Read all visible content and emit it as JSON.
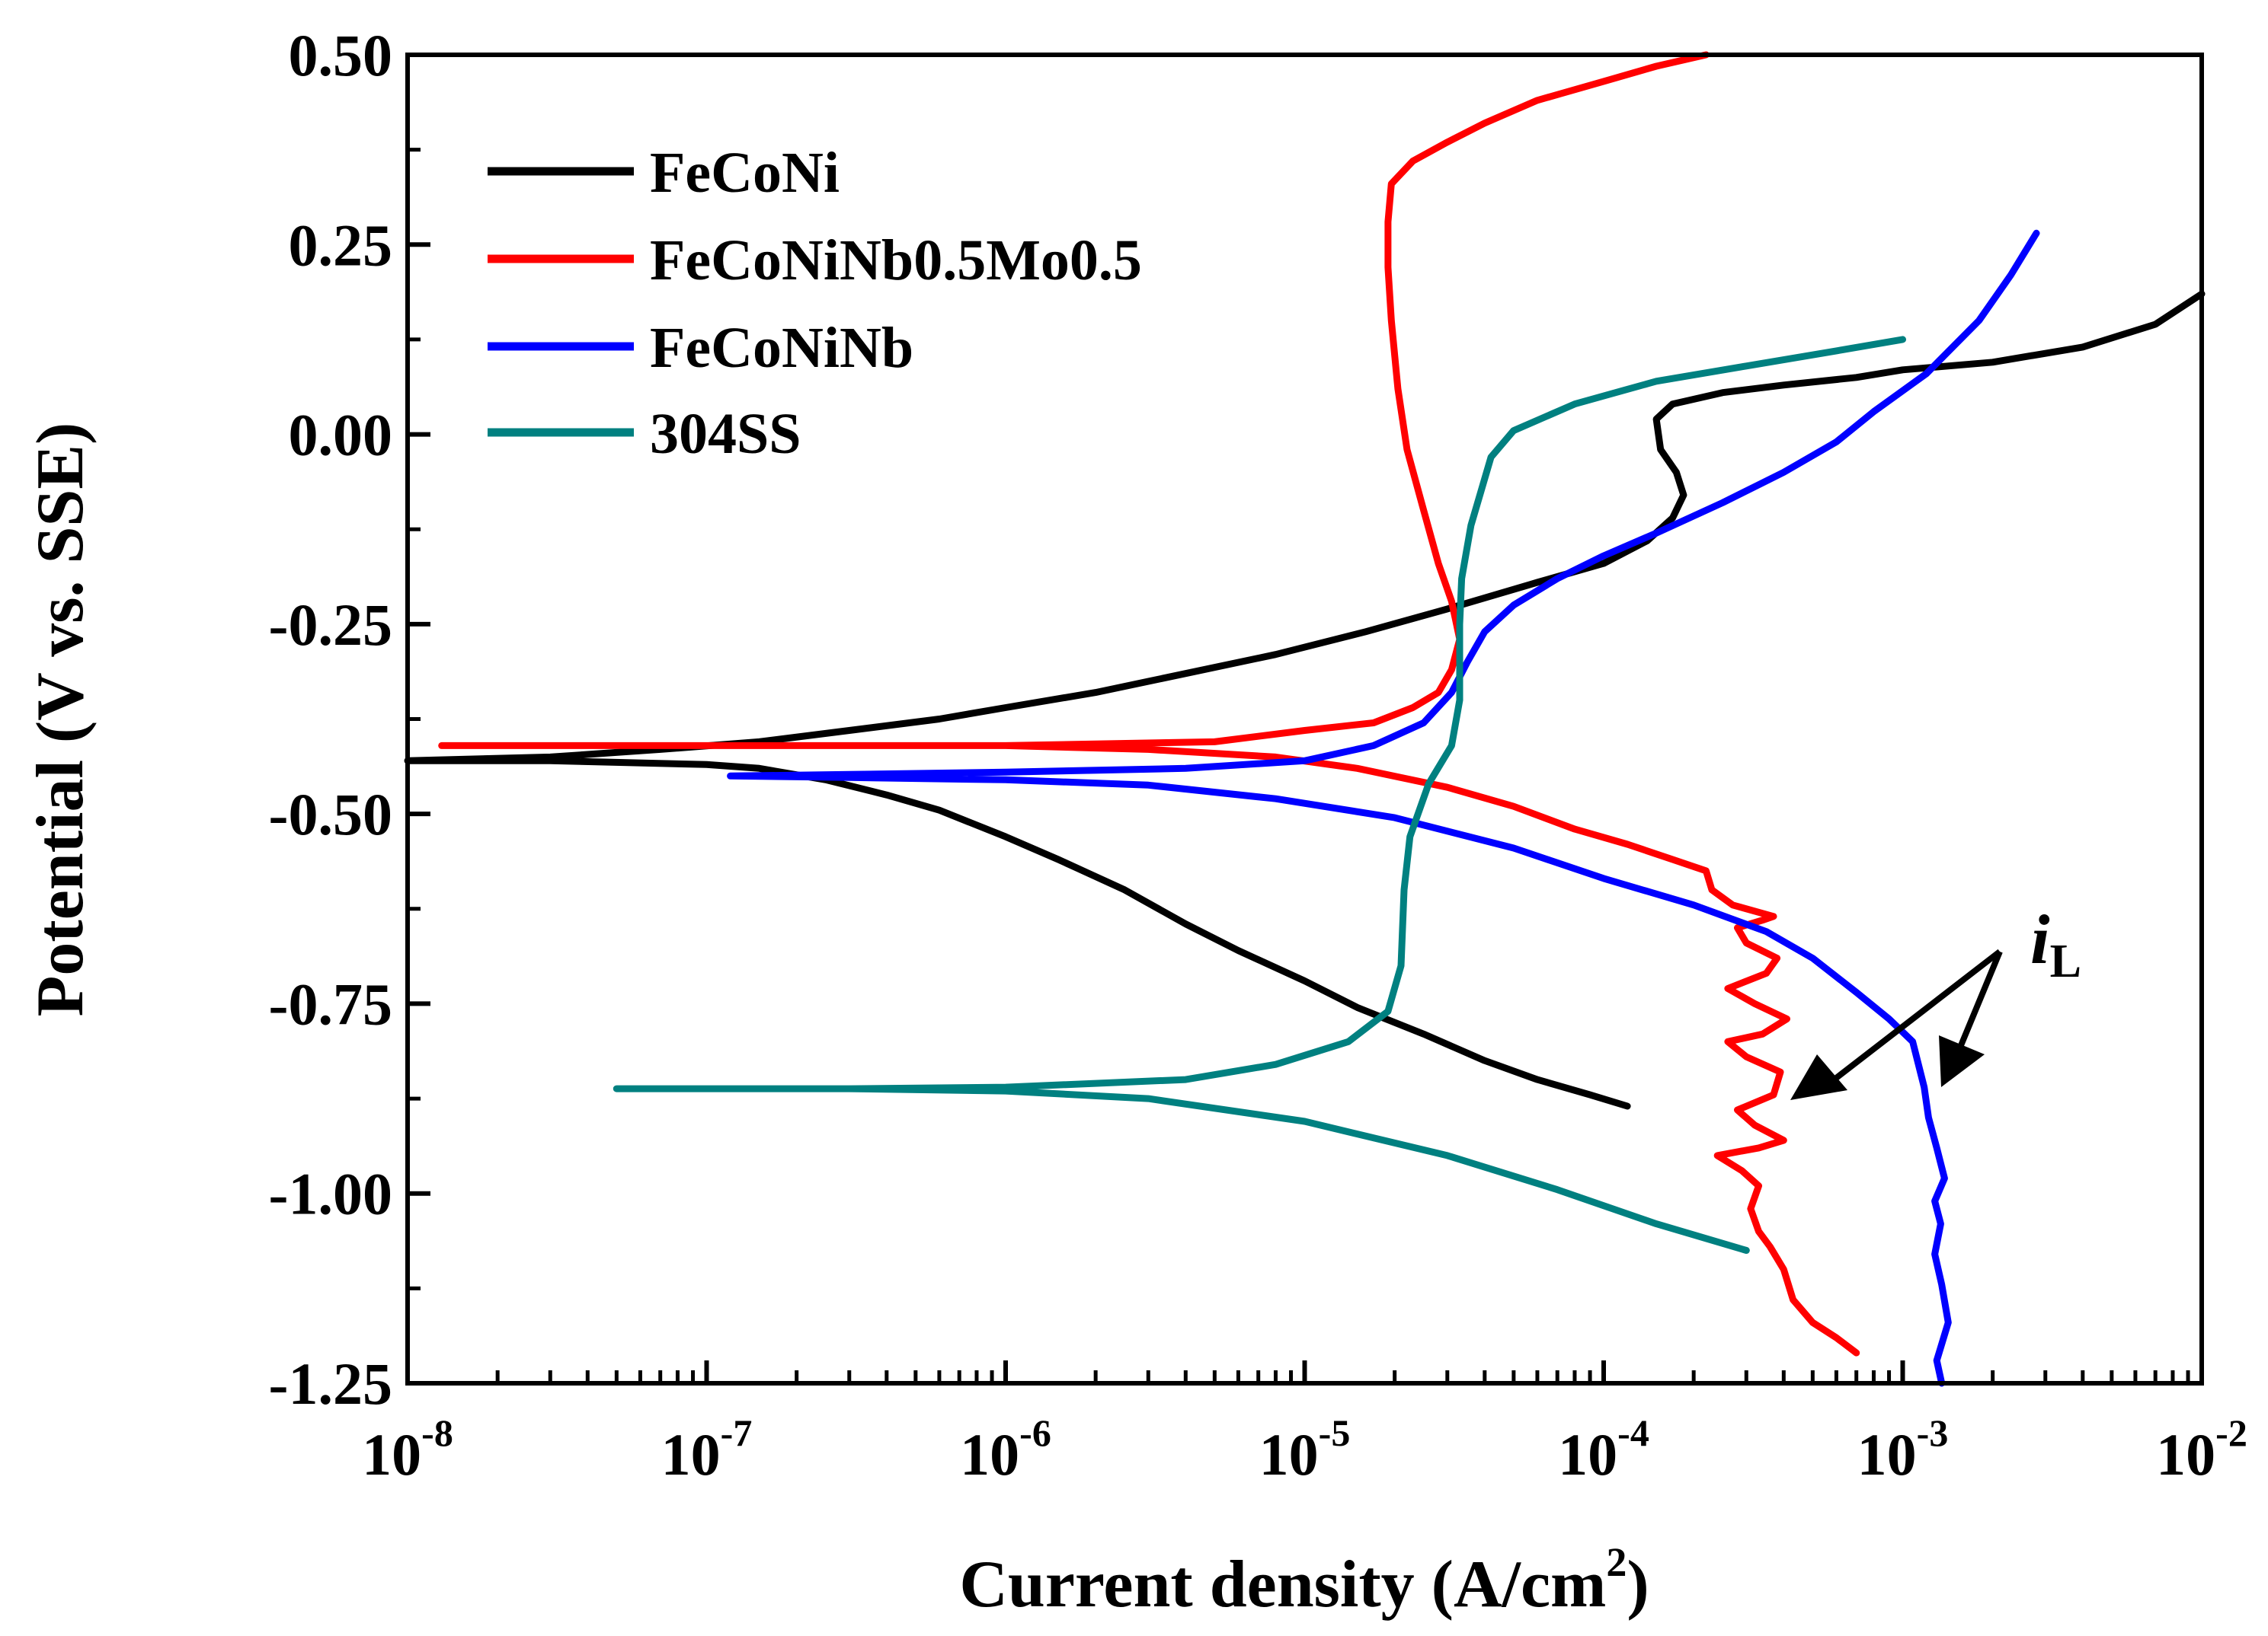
{
  "chart_data": {
    "type": "line",
    "title": "",
    "xlabel": "Current density (A/cm",
    "xlabel_sup": "2",
    "xlabel_end": ")",
    "ylabel": "Potential (V vs. SSE)",
    "x_scale": "log",
    "xlim": [
      1e-08,
      0.01
    ],
    "ylim": [
      -1.25,
      0.5
    ],
    "grid": false,
    "legend_position": "top-left",
    "x_ticks": [
      {
        "value": 1e-08,
        "base": "10",
        "exp": "-8"
      },
      {
        "value": 1e-07,
        "base": "10",
        "exp": "-7"
      },
      {
        "value": 1e-06,
        "base": "10",
        "exp": "-6"
      },
      {
        "value": 1e-05,
        "base": "10",
        "exp": "-5"
      },
      {
        "value": 0.0001,
        "base": "10",
        "exp": "-4"
      },
      {
        "value": 0.001,
        "base": "10",
        "exp": "-3"
      },
      {
        "value": 0.01,
        "base": "10",
        "exp": "-2"
      }
    ],
    "y_ticks": [
      {
        "value": 0.5,
        "label": "0.50"
      },
      {
        "value": 0.25,
        "label": "0.25"
      },
      {
        "value": 0.0,
        "label": "0.00"
      },
      {
        "value": -0.25,
        "label": "-0.25"
      },
      {
        "value": -0.5,
        "label": "-0.50"
      },
      {
        "value": -0.75,
        "label": "-0.75"
      },
      {
        "value": -1.0,
        "label": "-1.00"
      },
      {
        "value": -1.25,
        "label": "-1.25"
      }
    ],
    "series": [
      {
        "name": "FeCoNi",
        "color": "#000000",
        "points": [
          [
            0.00012,
            -0.885
          ],
          [
            9e-05,
            -0.87
          ],
          [
            6e-05,
            -0.85
          ],
          [
            4e-05,
            -0.825
          ],
          [
            2.5e-05,
            -0.79
          ],
          [
            1.5e-05,
            -0.755
          ],
          [
            1e-05,
            -0.72
          ],
          [
            6e-06,
            -0.68
          ],
          [
            4e-06,
            -0.645
          ],
          [
            2.5e-06,
            -0.6
          ],
          [
            1.5e-06,
            -0.56
          ],
          [
            1e-06,
            -0.53
          ],
          [
            6e-07,
            -0.495
          ],
          [
            4e-07,
            -0.475
          ],
          [
            2.5e-07,
            -0.455
          ],
          [
            1.5e-07,
            -0.44
          ],
          [
            1e-07,
            -0.435
          ],
          [
            3e-08,
            -0.43
          ],
          [
            1e-08,
            -0.43
          ],
          [
            3e-08,
            -0.425
          ],
          [
            7e-08,
            -0.415
          ],
          [
            1.5e-07,
            -0.405
          ],
          [
            3e-07,
            -0.39
          ],
          [
            6e-07,
            -0.375
          ],
          [
            1e-06,
            -0.36
          ],
          [
            2e-06,
            -0.34
          ],
          [
            4e-06,
            -0.315
          ],
          [
            8e-06,
            -0.29
          ],
          [
            1.6e-05,
            -0.26
          ],
          [
            3e-05,
            -0.23
          ],
          [
            6e-05,
            -0.195
          ],
          [
            0.0001,
            -0.17
          ],
          [
            0.00014,
            -0.14
          ],
          [
            0.00017,
            -0.11
          ],
          [
            0.000185,
            -0.08
          ],
          [
            0.000175,
            -0.05
          ],
          [
            0.000155,
            -0.02
          ],
          [
            0.00015,
            0.02
          ],
          [
            0.00017,
            0.04
          ],
          [
            0.00025,
            0.055
          ],
          [
            0.0004,
            0.065
          ],
          [
            0.0007,
            0.075
          ],
          [
            0.001,
            0.085
          ],
          [
            0.002,
            0.095
          ],
          [
            0.004,
            0.115
          ],
          [
            0.007,
            0.145
          ],
          [
            0.01,
            0.185
          ]
        ]
      },
      {
        "name": "FeCoNiNb0.5Mo0.5",
        "color": "#ff0000",
        "points": [
          [
            0.0007,
            -1.21
          ],
          [
            0.0006,
            -1.19
          ],
          [
            0.0005,
            -1.17
          ],
          [
            0.00043,
            -1.14
          ],
          [
            0.0004,
            -1.1
          ],
          [
            0.00036,
            -1.07
          ],
          [
            0.00033,
            -1.05
          ],
          [
            0.00031,
            -1.02
          ],
          [
            0.00033,
            -0.99
          ],
          [
            0.00029,
            -0.97
          ],
          [
            0.00024,
            -0.95
          ],
          [
            0.00033,
            -0.94
          ],
          [
            0.0004,
            -0.93
          ],
          [
            0.00032,
            -0.91
          ],
          [
            0.00028,
            -0.89
          ],
          [
            0.00037,
            -0.87
          ],
          [
            0.00039,
            -0.84
          ],
          [
            0.0003,
            -0.82
          ],
          [
            0.00026,
            -0.8
          ],
          [
            0.00034,
            -0.79
          ],
          [
            0.00041,
            -0.77
          ],
          [
            0.00032,
            -0.75
          ],
          [
            0.00026,
            -0.73
          ],
          [
            0.00035,
            -0.71
          ],
          [
            0.00038,
            -0.69
          ],
          [
            0.0003,
            -0.67
          ],
          [
            0.00028,
            -0.65
          ],
          [
            0.00034,
            -0.64
          ],
          [
            0.00037,
            -0.635
          ],
          [
            0.00027,
            -0.62
          ],
          [
            0.00023,
            -0.6
          ],
          [
            0.00022,
            -0.575
          ],
          [
            0.00017,
            -0.56
          ],
          [
            0.00012,
            -0.54
          ],
          [
            8e-05,
            -0.52
          ],
          [
            5e-05,
            -0.49
          ],
          [
            3e-05,
            -0.465
          ],
          [
            1.5e-05,
            -0.44
          ],
          [
            8e-06,
            -0.425
          ],
          [
            3e-06,
            -0.415
          ],
          [
            1e-06,
            -0.41
          ],
          [
            1e-07,
            -0.41
          ],
          [
            1.3e-08,
            -0.41
          ],
          [
            1e-07,
            -0.41
          ],
          [
            1e-06,
            -0.41
          ],
          [
            5e-06,
            -0.405
          ],
          [
            1e-05,
            -0.39
          ],
          [
            1.7e-05,
            -0.38
          ],
          [
            2.3e-05,
            -0.36
          ],
          [
            2.8e-05,
            -0.34
          ],
          [
            3.1e-05,
            -0.31
          ],
          [
            3.3e-05,
            -0.27
          ],
          [
            3.1e-05,
            -0.22
          ],
          [
            2.8e-05,
            -0.17
          ],
          [
            2.5e-05,
            -0.1
          ],
          [
            2.2e-05,
            -0.02
          ],
          [
            2.05e-05,
            0.06
          ],
          [
            1.95e-05,
            0.15
          ],
          [
            1.9e-05,
            0.22
          ],
          [
            1.9e-05,
            0.28
          ],
          [
            1.95e-05,
            0.33
          ],
          [
            2.3e-05,
            0.36
          ],
          [
            3e-05,
            0.385
          ],
          [
            4e-05,
            0.41
          ],
          [
            6e-05,
            0.44
          ],
          [
            0.0001,
            0.465
          ],
          [
            0.00015,
            0.485
          ],
          [
            0.00022,
            0.5
          ]
        ]
      },
      {
        "name": "FeCoNiNb",
        "color": "#0000ff",
        "points": [
          [
            0.00135,
            -1.25
          ],
          [
            0.0013,
            -1.22
          ],
          [
            0.00142,
            -1.17
          ],
          [
            0.00135,
            -1.12
          ],
          [
            0.00128,
            -1.08
          ],
          [
            0.00134,
            -1.04
          ],
          [
            0.00128,
            -1.01
          ],
          [
            0.00138,
            -0.98
          ],
          [
            0.0013,
            -0.94
          ],
          [
            0.00122,
            -0.9
          ],
          [
            0.00118,
            -0.86
          ],
          [
            0.00108,
            -0.8
          ],
          [
            0.0009,
            -0.77
          ],
          [
            0.0007,
            -0.735
          ],
          [
            0.0005,
            -0.69
          ],
          [
            0.00035,
            -0.655
          ],
          [
            0.0002,
            -0.62
          ],
          [
            0.0001,
            -0.585
          ],
          [
            5e-05,
            -0.545
          ],
          [
            2e-05,
            -0.505
          ],
          [
            8e-06,
            -0.48
          ],
          [
            3e-06,
            -0.462
          ],
          [
            1e-06,
            -0.455
          ],
          [
            3e-07,
            -0.452
          ],
          [
            1.2e-07,
            -0.45
          ],
          [
            3e-07,
            -0.448
          ],
          [
            1e-06,
            -0.445
          ],
          [
            4e-06,
            -0.44
          ],
          [
            1e-05,
            -0.43
          ],
          [
            1.7e-05,
            -0.41
          ],
          [
            2.5e-05,
            -0.38
          ],
          [
            3.1e-05,
            -0.34
          ],
          [
            3.5e-05,
            -0.3
          ],
          [
            4e-05,
            -0.26
          ],
          [
            5e-05,
            -0.225
          ],
          [
            7e-05,
            -0.19
          ],
          [
            0.0001,
            -0.16
          ],
          [
            0.00015,
            -0.13
          ],
          [
            0.00025,
            -0.09
          ],
          [
            0.0004,
            -0.05
          ],
          [
            0.0006,
            -0.01
          ],
          [
            0.0008,
            0.03
          ],
          [
            0.0012,
            0.08
          ],
          [
            0.0018,
            0.15
          ],
          [
            0.0023,
            0.21
          ],
          [
            0.0028,
            0.265
          ]
        ]
      },
      {
        "name": "304SS",
        "color": "#008080",
        "points": [
          [
            0.0003,
            -1.075
          ],
          [
            0.00015,
            -1.04
          ],
          [
            7e-05,
            -0.995
          ],
          [
            3e-05,
            -0.95
          ],
          [
            1e-05,
            -0.905
          ],
          [
            3e-06,
            -0.875
          ],
          [
            1e-06,
            -0.865
          ],
          [
            3e-07,
            -0.862
          ],
          [
            5e-08,
            -0.862
          ],
          [
            3e-07,
            -0.862
          ],
          [
            1e-06,
            -0.86
          ],
          [
            4e-06,
            -0.85
          ],
          [
            8e-06,
            -0.83
          ],
          [
            1.4e-05,
            -0.8
          ],
          [
            1.9e-05,
            -0.76
          ],
          [
            2.1e-05,
            -0.7
          ],
          [
            2.15e-05,
            -0.6
          ],
          [
            2.25e-05,
            -0.53
          ],
          [
            2.6e-05,
            -0.46
          ],
          [
            3.1e-05,
            -0.41
          ],
          [
            3.3e-05,
            -0.35
          ],
          [
            3.3e-05,
            -0.3
          ],
          [
            3.3e-05,
            -0.25
          ],
          [
            3.35e-05,
            -0.19
          ],
          [
            3.6e-05,
            -0.12
          ],
          [
            4.2e-05,
            -0.03
          ],
          [
            5e-05,
            0.005
          ],
          [
            8e-05,
            0.04
          ],
          [
            0.00015,
            0.07
          ],
          [
            0.0003,
            0.09
          ],
          [
            0.0006,
            0.11
          ],
          [
            0.001,
            0.125
          ]
        ]
      }
    ],
    "annotations": [
      {
        "text_italic": "i",
        "text_sub": "L"
      }
    ]
  }
}
